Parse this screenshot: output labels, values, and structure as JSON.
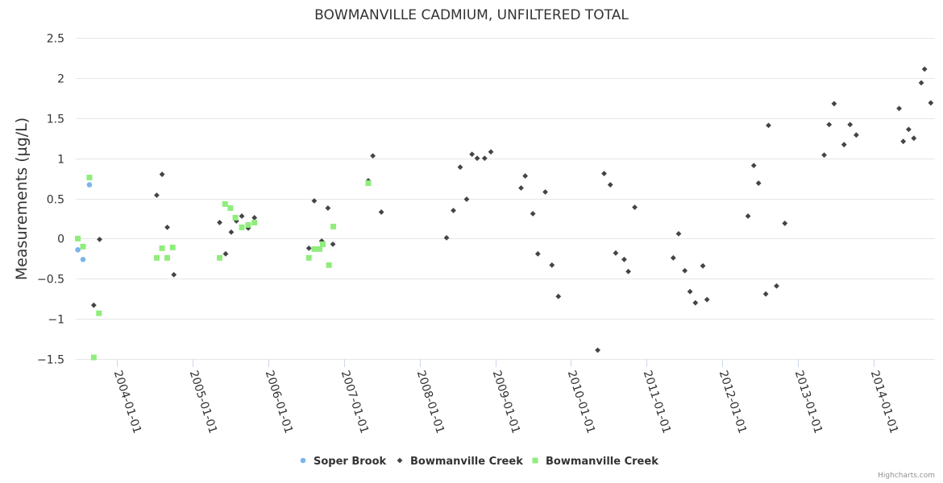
{
  "credits": "Highcharts.com",
  "colors": {
    "soper_brook": "#7cb5ec",
    "bowmanville_diamond": "#434348",
    "bowmanville_square": "#90ed7d",
    "grid": "#e6e6e6",
    "text": "#333333"
  },
  "chart_data": {
    "type": "scatter",
    "title": "BOWMANVILLE CADMIUM, UNFILTERED TOTAL",
    "xlabel": "",
    "ylabel": "Measurements (µg/L)",
    "ylim": [
      -1.5,
      2.5
    ],
    "yticks": [
      2.5,
      2,
      1.5,
      1,
      0.5,
      0,
      -0.5,
      -1,
      -1.5
    ],
    "ytick_labels": [
      "2.5",
      "2",
      "1.5",
      "1",
      "0.5",
      "0",
      "−0.5",
      "−1",
      "−1.5"
    ],
    "xlim": [
      "2003-06-15",
      "2014-10-25"
    ],
    "xticks": [
      "2004-01-01",
      "2005-01-01",
      "2006-01-01",
      "2007-01-01",
      "2008-01-01",
      "2009-01-01",
      "2010-01-01",
      "2011-01-01",
      "2012-01-01",
      "2013-01-01",
      "2014-01-01"
    ],
    "grid": true,
    "legend_position": "bottom-center",
    "series": [
      {
        "name": "Soper Brook",
        "marker": "circle",
        "color": "#7cb5ec",
        "points": [
          {
            "x": "2003-06-25",
            "y": -0.14
          },
          {
            "x": "2003-07-20",
            "y": -0.26
          },
          {
            "x": "2003-08-20",
            "y": 0.67
          }
        ]
      },
      {
        "name": "Bowmanville Creek",
        "marker": "diamond",
        "color": "#434348",
        "points": [
          {
            "x": "2003-09-10",
            "y": -0.83
          },
          {
            "x": "2003-10-08",
            "y": -0.01
          },
          {
            "x": "2004-07-10",
            "y": 0.54
          },
          {
            "x": "2004-08-05",
            "y": 0.8
          },
          {
            "x": "2004-08-30",
            "y": 0.14
          },
          {
            "x": "2004-10-01",
            "y": -0.45
          },
          {
            "x": "2005-05-10",
            "y": 0.2
          },
          {
            "x": "2005-06-08",
            "y": -0.19
          },
          {
            "x": "2005-07-05",
            "y": 0.08
          },
          {
            "x": "2005-07-30",
            "y": 0.22
          },
          {
            "x": "2005-08-25",
            "y": 0.28
          },
          {
            "x": "2005-09-25",
            "y": 0.13
          },
          {
            "x": "2005-10-25",
            "y": 0.26
          },
          {
            "x": "2006-07-15",
            "y": -0.12
          },
          {
            "x": "2006-08-10",
            "y": 0.47
          },
          {
            "x": "2006-09-15",
            "y": -0.03
          },
          {
            "x": "2006-10-15",
            "y": 0.38
          },
          {
            "x": "2006-11-08",
            "y": -0.07
          },
          {
            "x": "2007-04-28",
            "y": 0.72
          },
          {
            "x": "2007-05-20",
            "y": 1.03
          },
          {
            "x": "2007-06-30",
            "y": 0.33
          },
          {
            "x": "2008-05-10",
            "y": 0.01
          },
          {
            "x": "2008-06-12",
            "y": 0.35
          },
          {
            "x": "2008-07-15",
            "y": 0.89
          },
          {
            "x": "2008-08-15",
            "y": 0.49
          },
          {
            "x": "2008-09-10",
            "y": 1.05
          },
          {
            "x": "2008-10-05",
            "y": 1.0
          },
          {
            "x": "2008-11-10",
            "y": 1.0
          },
          {
            "x": "2008-12-10",
            "y": 1.08
          },
          {
            "x": "2009-05-05",
            "y": 0.63
          },
          {
            "x": "2009-05-25",
            "y": 0.78
          },
          {
            "x": "2009-07-01",
            "y": 0.31
          },
          {
            "x": "2009-07-25",
            "y": -0.19
          },
          {
            "x": "2009-08-30",
            "y": 0.58
          },
          {
            "x": "2009-10-01",
            "y": -0.33
          },
          {
            "x": "2009-11-01",
            "y": -0.72
          },
          {
            "x": "2010-05-10",
            "y": -1.39
          },
          {
            "x": "2010-06-10",
            "y": 0.81
          },
          {
            "x": "2010-07-10",
            "y": 0.67
          },
          {
            "x": "2010-08-05",
            "y": -0.18
          },
          {
            "x": "2010-09-15",
            "y": -0.26
          },
          {
            "x": "2010-10-05",
            "y": -0.41
          },
          {
            "x": "2010-11-05",
            "y": 0.39
          },
          {
            "x": "2011-05-10",
            "y": -0.24
          },
          {
            "x": "2011-06-05",
            "y": 0.06
          },
          {
            "x": "2011-07-05",
            "y": -0.4
          },
          {
            "x": "2011-07-30",
            "y": -0.66
          },
          {
            "x": "2011-08-25",
            "y": -0.8
          },
          {
            "x": "2011-09-30",
            "y": -0.34
          },
          {
            "x": "2011-10-20",
            "y": -0.76
          },
          {
            "x": "2012-05-05",
            "y": 0.28
          },
          {
            "x": "2012-06-02",
            "y": 0.91
          },
          {
            "x": "2012-06-25",
            "y": 0.69
          },
          {
            "x": "2012-07-30",
            "y": -0.69
          },
          {
            "x": "2012-08-12",
            "y": 1.41
          },
          {
            "x": "2012-09-20",
            "y": -0.59
          },
          {
            "x": "2012-10-30",
            "y": 0.19
          },
          {
            "x": "2013-05-08",
            "y": 1.04
          },
          {
            "x": "2013-06-01",
            "y": 1.42
          },
          {
            "x": "2013-06-25",
            "y": 1.68
          },
          {
            "x": "2013-08-12",
            "y": 1.17
          },
          {
            "x": "2013-09-10",
            "y": 1.42
          },
          {
            "x": "2013-10-10",
            "y": 1.29
          },
          {
            "x": "2014-05-05",
            "y": 1.62
          },
          {
            "x": "2014-05-25",
            "y": 1.21
          },
          {
            "x": "2014-06-20",
            "y": 1.36
          },
          {
            "x": "2014-07-15",
            "y": 1.25
          },
          {
            "x": "2014-08-20",
            "y": 1.94
          },
          {
            "x": "2014-09-05",
            "y": 2.11
          },
          {
            "x": "2014-10-05",
            "y": 1.69
          }
        ]
      },
      {
        "name": "Bowmanville Creek",
        "marker": "square",
        "color": "#90ed7d",
        "points": [
          {
            "x": "2003-06-25",
            "y": 0.0
          },
          {
            "x": "2003-07-20",
            "y": -0.1
          },
          {
            "x": "2003-08-20",
            "y": 0.76
          },
          {
            "x": "2003-09-10",
            "y": -1.48
          },
          {
            "x": "2003-10-05",
            "y": -0.93
          },
          {
            "x": "2004-07-10",
            "y": -0.24
          },
          {
            "x": "2004-08-05",
            "y": -0.12
          },
          {
            "x": "2004-08-30",
            "y": -0.24
          },
          {
            "x": "2004-09-25",
            "y": -0.11
          },
          {
            "x": "2005-05-10",
            "y": -0.24
          },
          {
            "x": "2005-06-05",
            "y": 0.43
          },
          {
            "x": "2005-07-01",
            "y": 0.38
          },
          {
            "x": "2005-07-25",
            "y": 0.26
          },
          {
            "x": "2005-08-25",
            "y": 0.14
          },
          {
            "x": "2005-09-25",
            "y": 0.17
          },
          {
            "x": "2005-10-25",
            "y": 0.2
          },
          {
            "x": "2006-07-15",
            "y": -0.24
          },
          {
            "x": "2006-08-10",
            "y": -0.13
          },
          {
            "x": "2006-09-05",
            "y": -0.13
          },
          {
            "x": "2006-09-20",
            "y": -0.07
          },
          {
            "x": "2006-10-20",
            "y": -0.33
          },
          {
            "x": "2006-11-10",
            "y": 0.15
          },
          {
            "x": "2007-04-28",
            "y": 0.69
          }
        ]
      }
    ]
  }
}
